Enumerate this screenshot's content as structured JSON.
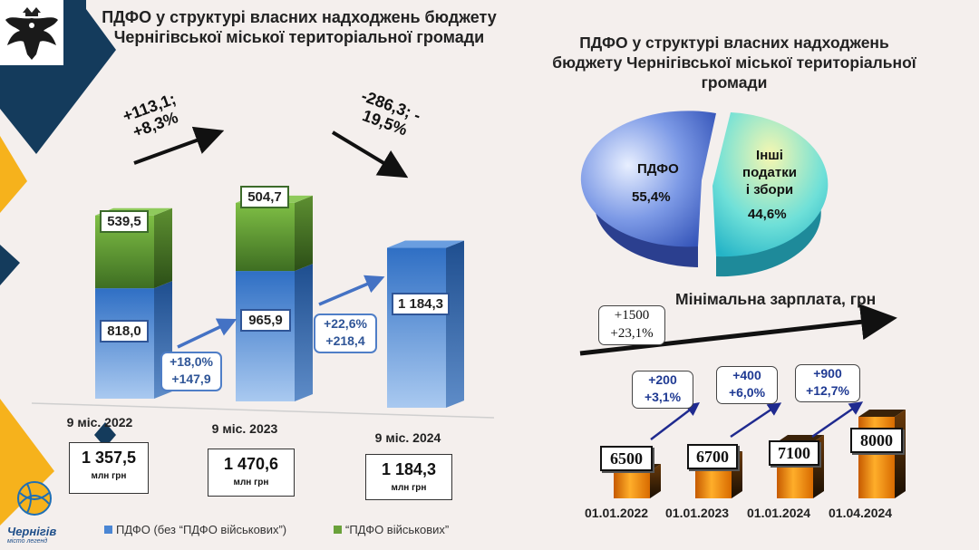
{
  "title_left": "ПДФО у структурі власних надходжень бюджету Чернігівської міської територіальної громади",
  "title_right": "ПДФО у структурі власних надходжень бюджету Чернігівської міської територіальної громади",
  "logo_text": {
    "name": "Чернігів",
    "tagline": "місто легенд"
  },
  "colors": {
    "blue_bar": "#4a86d4",
    "green_bar": "#6aa13a",
    "orange_bar": "#f08a0c",
    "pie_blue": "#5b7fd8",
    "pie_cyan": "#3fd0d6"
  },
  "chart_data": [
    {
      "type": "bar",
      "stacked": true,
      "categories": [
        "9 міс. 2022",
        "9 міс. 2023",
        "9 міс. 2024"
      ],
      "series": [
        {
          "name": "ПДФО (без “ПДФО військових”)",
          "values": [
            818.0,
            965.9,
            1184.3
          ],
          "labels": [
            "818,0",
            "965,9",
            "1 184,3"
          ]
        },
        {
          "name": "“ПДФО військових”",
          "values": [
            539.5,
            504.7,
            0
          ],
          "labels": [
            "539,5",
            "504,7",
            ""
          ]
        }
      ],
      "totals": [
        {
          "value": "1 357,5",
          "unit": "млн грн"
        },
        {
          "value": "1 470,6",
          "unit": "млн грн"
        },
        {
          "value": "1 184,3",
          "unit": "млн грн"
        }
      ],
      "blue_changes": [
        {
          "pct": "+18,0%",
          "abs": "+147,9"
        },
        {
          "pct": "+22,6%",
          "abs": "+218,4"
        }
      ],
      "total_changes": [
        {
          "line1": "+113,1;",
          "line2": "+8,3%"
        },
        {
          "line1": "-286,3; -",
          "line2": "19,5%"
        }
      ]
    },
    {
      "type": "pie",
      "slices": [
        {
          "name": "ПДФО",
          "value": 55.4,
          "label": "55,4%"
        },
        {
          "name": "Інші податки і збори",
          "value": 44.6,
          "label": "44,6%"
        }
      ]
    },
    {
      "type": "bar",
      "title": "Мінімальна зарплата, грн",
      "categories": [
        "01.01.2022",
        "01.01.2023",
        "01.01.2024",
        "01.04.2024"
      ],
      "values": [
        6500,
        6700,
        7100,
        8000
      ],
      "labels": [
        "6500",
        "6700",
        "7100",
        "8000"
      ],
      "changes": [
        {
          "line1": "+200",
          "line2": "+3,1%"
        },
        {
          "line1": "+400",
          "line2": "+6,0%"
        },
        {
          "line1": "+900",
          "line2": "+12,7%"
        }
      ],
      "total_change": {
        "line1": "+1500",
        "line2": "+23,1%"
      }
    }
  ]
}
